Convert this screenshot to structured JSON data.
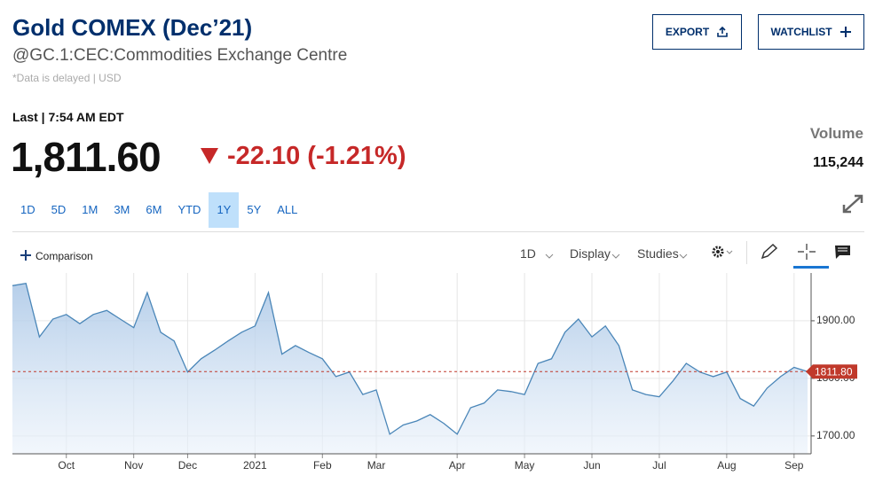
{
  "header": {
    "title": "Gold COMEX (Dec’21)",
    "subtitle": "@GC.1:CEC:Commodities Exchange Centre",
    "note": "*Data is delayed | USD"
  },
  "buttons": {
    "export": "EXPORT",
    "watchlist": "WATCHLIST"
  },
  "quote": {
    "last": "Last | 7:54 AM EDT",
    "price": "1,811.60",
    "change": "-22.10 (-1.21%)",
    "volume_label": "Volume",
    "volume": "115,244"
  },
  "ranges": [
    "1D",
    "5D",
    "1M",
    "3M",
    "6M",
    "YTD",
    "1Y",
    "5Y",
    "ALL"
  ],
  "toolbar": {
    "comparison": "Comparison",
    "interval": "1D",
    "display": "Display",
    "studies": "Studies"
  },
  "chart_data": {
    "type": "area",
    "categories": [
      null,
      null,
      null,
      null,
      "Oct",
      null,
      null,
      null,
      null,
      "Nov",
      null,
      null,
      null,
      "Dec",
      null,
      null,
      null,
      null,
      "2021",
      null,
      null,
      null,
      null,
      "Feb",
      null,
      null,
      null,
      "Mar",
      null,
      null,
      null,
      null,
      null,
      "Apr",
      null,
      null,
      null,
      null,
      "May",
      null,
      null,
      null,
      null,
      "Jun",
      null,
      null,
      null,
      null,
      "Jul",
      null,
      null,
      null,
      null,
      "Aug",
      null,
      null,
      null,
      null,
      "Sep",
      null
    ],
    "values": [
      1961,
      1965,
      1872,
      1903,
      1911,
      1895,
      1911,
      1918,
      1903,
      1888,
      1949,
      1880,
      1865,
      1811,
      1834,
      1849,
      1865,
      1880,
      1891,
      1949,
      1842,
      1857,
      1845,
      1834,
      1803,
      1811,
      1772,
      1780,
      1703,
      1719,
      1726,
      1737,
      1722,
      1703,
      1749,
      1757,
      1780,
      1777,
      1772,
      1826,
      1834,
      1880,
      1903,
      1872,
      1891,
      1857,
      1780,
      1772,
      1768,
      1795,
      1826,
      1811,
      1803,
      1811,
      1765,
      1752,
      1783,
      1803,
      1819,
      1811.8
    ],
    "color": "#4a86b8",
    "ylim": [
      1669,
      1983
    ],
    "yticks": [
      {
        "value": 1700,
        "label": "1700.00"
      },
      {
        "value": 1800,
        "label": "1800.00"
      },
      {
        "value": 1900,
        "label": "1900.00"
      }
    ],
    "marker": {
      "value": 1811.8,
      "label": "1811.80"
    },
    "grid": true
  }
}
